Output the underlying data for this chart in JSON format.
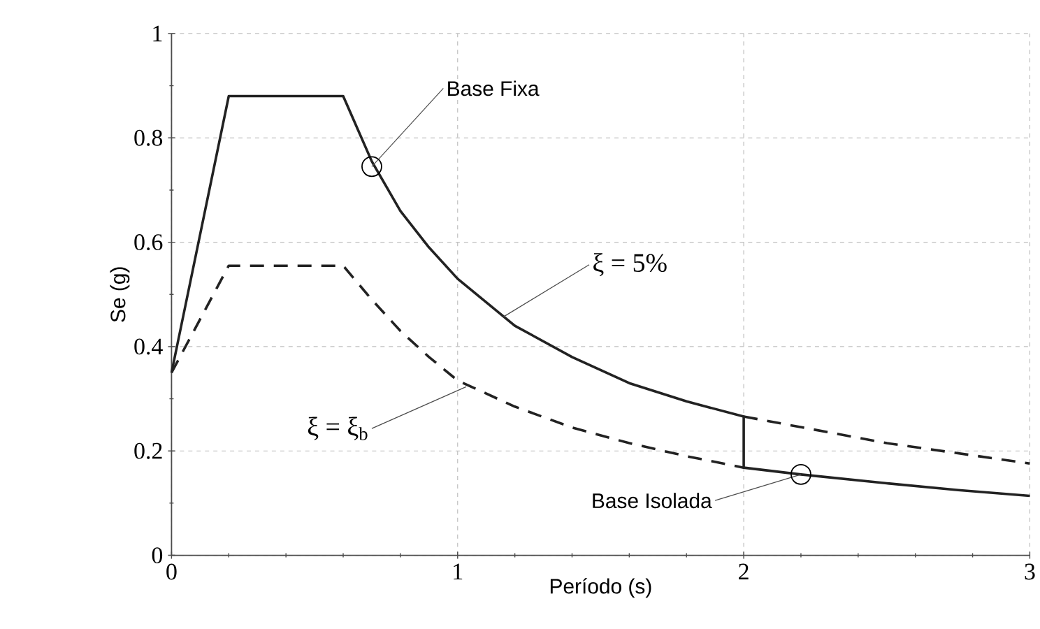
{
  "chart_data": {
    "type": "line",
    "xlabel": "Período (s)",
    "ylabel": "Se (g)",
    "series": [
      {
        "x": [
          0,
          0.2,
          0.6,
          0.7,
          0.8,
          0.9,
          1.0,
          1.2,
          1.4,
          1.6,
          1.8,
          2.0,
          2.0,
          2.2,
          2.5,
          2.75,
          3.0
        ],
        "values": [
          0.35,
          0.88,
          0.88,
          0.755,
          0.66,
          0.59,
          0.53,
          0.44,
          0.38,
          0.33,
          0.295,
          0.266,
          0.168,
          0.155,
          0.138,
          0.125,
          0.114
        ],
        "color": "#222222",
        "line_style": "solid"
      },
      {
        "x": [
          0,
          0.2,
          0.6,
          0.7,
          0.8,
          0.9,
          1.0,
          1.2,
          1.4,
          1.6,
          1.8,
          2.0
        ],
        "values": [
          0.35,
          0.555,
          0.555,
          0.49,
          0.43,
          0.38,
          0.335,
          0.285,
          0.245,
          0.215,
          0.19,
          0.168
        ],
        "color": "#222222",
        "line_style": "dashed"
      },
      {
        "x": [
          2.0,
          2.5,
          3.0
        ],
        "values": [
          0.266,
          0.215,
          0.176
        ],
        "color": "#222222",
        "line_style": "dashed"
      }
    ],
    "annotations": [
      {
        "text": "Base Fixa",
        "x": 0.7,
        "y": 0.745
      },
      {
        "text": "ξ = 5%",
        "x": 1.16,
        "y": 0.457
      },
      {
        "text": "ξ = ξ$_{b}$",
        "x": 1.03,
        "y": 0.323
      },
      {
        "text": "Base Isolada",
        "x": 2.2,
        "y": 0.155
      }
    ],
    "xlim": [
      0,
      3
    ],
    "ylim": [
      0,
      1
    ],
    "xticks": [
      0,
      1,
      2,
      3
    ],
    "yticks": [
      0,
      0.2,
      0.4,
      0.6,
      0.8,
      1
    ],
    "grid": true,
    "marker": "none"
  }
}
